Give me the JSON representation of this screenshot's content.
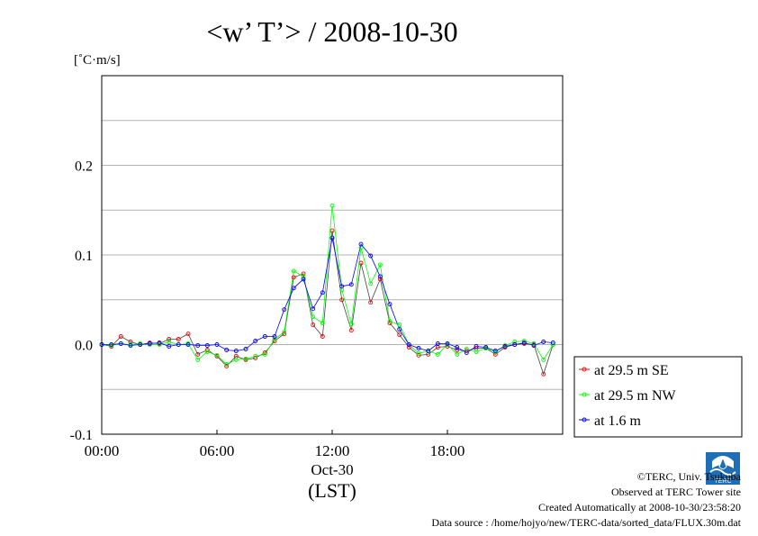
{
  "chart_data": {
    "type": "line",
    "title": "<w’ T’> / 2008-10-30",
    "ylabel": "[˚C·m/s]",
    "xlabel": "(LST)",
    "x_date_label": "Oct-30",
    "x_ticks": [
      "00:00",
      "06:00",
      "12:00",
      "18:00"
    ],
    "y_ticks": [
      "-0.1",
      "0.0",
      "0.1",
      "0.2"
    ],
    "xlim": [
      0,
      24
    ],
    "ylim": [
      -0.1,
      0.3
    ],
    "grid": true,
    "legend_position": "right",
    "x": [
      0.0,
      0.5,
      1.0,
      1.5,
      2.0,
      2.5,
      3.0,
      3.5,
      4.0,
      4.5,
      5.0,
      5.5,
      6.0,
      6.5,
      7.0,
      7.5,
      8.0,
      8.5,
      9.0,
      9.5,
      10.0,
      10.5,
      11.0,
      11.5,
      12.0,
      12.5,
      13.0,
      13.5,
      14.0,
      14.5,
      15.0,
      15.5,
      16.0,
      16.5,
      17.0,
      17.5,
      18.0,
      18.5,
      19.0,
      19.5,
      20.0,
      20.5,
      21.0,
      21.5,
      22.0,
      22.5,
      23.0,
      23.5
    ],
    "series": [
      {
        "name": "at 29.5 m SE",
        "color": "#ff0000",
        "values": [
          0.0,
          -0.002,
          0.009,
          0.003,
          0.0,
          0.002,
          0.001,
          0.006,
          0.006,
          0.012,
          -0.011,
          -0.006,
          -0.013,
          -0.024,
          -0.013,
          -0.017,
          -0.015,
          -0.009,
          0.004,
          0.012,
          0.075,
          0.079,
          0.022,
          0.009,
          0.127,
          0.05,
          0.016,
          0.091,
          0.047,
          0.073,
          0.024,
          0.011,
          -0.003,
          -0.012,
          -0.011,
          -0.003,
          -0.002,
          -0.006,
          -0.007,
          -0.004,
          -0.004,
          -0.011,
          -0.003,
          0.0,
          0.001,
          0.0,
          -0.033,
          0.0
        ]
      },
      {
        "name": "at 29.5 m NW",
        "color": "#00ff00",
        "values": [
          0.0,
          -0.001,
          0.001,
          0.0,
          0.001,
          0.0,
          0.0,
          0.003,
          0.0,
          0.001,
          -0.017,
          -0.008,
          -0.012,
          -0.022,
          -0.017,
          -0.016,
          -0.013,
          -0.011,
          0.006,
          0.014,
          0.082,
          0.076,
          0.031,
          0.024,
          0.155,
          0.061,
          0.023,
          0.108,
          0.068,
          0.089,
          0.026,
          0.022,
          0.0,
          -0.01,
          -0.007,
          -0.011,
          0.0,
          -0.011,
          -0.005,
          -0.008,
          -0.004,
          -0.008,
          -0.001,
          0.003,
          0.004,
          0.001,
          -0.017,
          0.0
        ]
      },
      {
        "name": "at 1.6 m",
        "color": "#0000ff",
        "values": [
          0.0,
          0.0,
          0.001,
          -0.001,
          0.0,
          0.001,
          0.002,
          -0.002,
          0.0,
          0.0,
          -0.001,
          -0.001,
          0.0,
          -0.006,
          -0.007,
          -0.005,
          0.004,
          0.009,
          0.009,
          0.039,
          0.063,
          0.073,
          0.04,
          0.058,
          0.119,
          0.065,
          0.067,
          0.112,
          0.099,
          0.076,
          0.045,
          0.017,
          0.0,
          -0.004,
          -0.007,
          0.001,
          0.001,
          -0.003,
          -0.009,
          -0.002,
          -0.003,
          -0.007,
          -0.002,
          0.0,
          0.002,
          -0.001,
          0.003,
          0.002
        ]
      }
    ]
  },
  "footer": {
    "credit": "©TERC, Univ. Tsukuba",
    "site": "Observed at TERC Tower site",
    "created": "Created Automatically at 2008-10-30/23:58:20",
    "source": "Data source : /home/hojyo/new/TERC-data/sorted_data/FLUX.30m.dat",
    "logo_text": "TERC"
  }
}
